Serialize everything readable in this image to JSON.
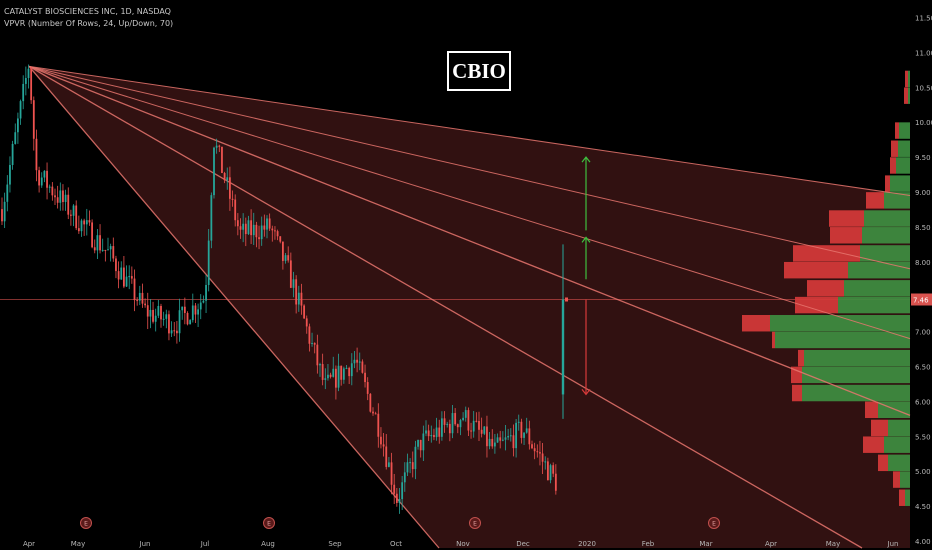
{
  "header": {
    "symbol_line": "CATALYST BIOSCIENCES INC, 1D, NASDAQ",
    "indicator_line": "VPVR (Number Of Rows, 24, Up/Down, 70)"
  },
  "annotation": {
    "ticker_label": "CBIO"
  },
  "colors": {
    "background": "#000000",
    "up": "#26a69a",
    "down": "#ef5350",
    "fan_line": "#e8766f",
    "fan_fill": "#3a1414",
    "vp_up": "#3e8e41",
    "vp_down": "#d63a3a",
    "arrow_up": "#3fbf3f",
    "arrow_down": "#d63a3a",
    "price_line": "#d9534f"
  },
  "chart_data": {
    "type": "candlestick",
    "title": "CATALYST BIOSCIENCES INC, 1D, NASDAQ",
    "xlabel": "",
    "ylabel": "",
    "x_ticks": [
      "Apr",
      "May",
      "Jun",
      "Jul",
      "Aug",
      "Sep",
      "Oct",
      "Nov",
      "Dec",
      "2020",
      "Feb",
      "Mar",
      "Apr",
      "May",
      "Jun"
    ],
    "y_ticks": [
      4.0,
      4.5,
      5.0,
      5.5,
      6.0,
      6.5,
      7.0,
      7.5,
      8.0,
      8.5,
      9.0,
      9.5,
      10.0,
      10.5,
      11.0,
      11.5
    ],
    "ylim": [
      3.9,
      11.55
    ],
    "last_price": "7.46",
    "earnings_markers": [
      {
        "month": "May",
        "label": "E"
      },
      {
        "month": "Aug",
        "label": "E"
      },
      {
        "month": "Nov",
        "label": "E"
      },
      {
        "month": "Mar",
        "label": "E"
      }
    ],
    "price_anchors": [
      [
        "Mar",
        8.6
      ],
      [
        "Apr",
        10.85
      ],
      [
        "Apr",
        9.3
      ],
      [
        "May",
        8.6
      ],
      [
        "May",
        8.1
      ],
      [
        "Jun",
        7.3
      ],
      [
        "Jun",
        7.1
      ],
      [
        "Jul",
        7.5
      ],
      [
        "Jul",
        9.75
      ],
      [
        "Jul",
        8.4
      ],
      [
        "Aug",
        8.5
      ],
      [
        "Aug",
        7.8
      ],
      [
        "Sep",
        6.2
      ],
      [
        "Sep",
        6.6
      ],
      [
        "Oct",
        5.6
      ],
      [
        "Oct",
        4.6
      ],
      [
        "Oct",
        5.4
      ],
      [
        "Nov",
        5.8
      ],
      [
        "Nov",
        5.3
      ],
      [
        "Dec",
        5.6
      ],
      [
        "Dec",
        4.75
      ]
    ],
    "final_candle": {
      "open": 6.1,
      "high": 8.25,
      "low": 5.75,
      "close": 7.46
    },
    "volume_profile": [
      {
        "price": 4.62,
        "up": 5,
        "down": 6
      },
      {
        "price": 4.88,
        "up": 10,
        "down": 7
      },
      {
        "price": 5.12,
        "up": 22,
        "down": 10
      },
      {
        "price": 5.38,
        "up": 26,
        "down": 21
      },
      {
        "price": 5.62,
        "up": 22,
        "down": 17
      },
      {
        "price": 5.88,
        "up": 32,
        "down": 13
      },
      {
        "price": 6.12,
        "up": 108,
        "down": 10
      },
      {
        "price": 6.38,
        "up": 108,
        "down": 11
      },
      {
        "price": 6.62,
        "up": 106,
        "down": 6
      },
      {
        "price": 6.88,
        "up": 135,
        "down": 3
      },
      {
        "price": 7.12,
        "up": 140,
        "down": 28
      },
      {
        "price": 7.38,
        "up": 72,
        "down": 43
      },
      {
        "price": 7.62,
        "up": 66,
        "down": 37
      },
      {
        "price": 7.88,
        "up": 62,
        "down": 64
      },
      {
        "price": 8.12,
        "up": 50,
        "down": 67
      },
      {
        "price": 8.38,
        "up": 48,
        "down": 32
      },
      {
        "price": 8.62,
        "up": 46,
        "down": 35
      },
      {
        "price": 8.88,
        "up": 26,
        "down": 18
      },
      {
        "price": 9.12,
        "up": 20,
        "down": 5
      },
      {
        "price": 9.38,
        "up": 14,
        "down": 6
      },
      {
        "price": 9.62,
        "up": 12,
        "down": 7
      },
      {
        "price": 9.88,
        "up": 11,
        "down": 4
      },
      {
        "price": 10.38,
        "up": 2,
        "down": 4
      },
      {
        "price": 10.62,
        "up": 2,
        "down": 3
      }
    ],
    "fan_origin": {
      "month": "Apr",
      "price": 10.8
    },
    "fan_lines": [
      {
        "to_price": 8.95,
        "at": "right-edge"
      },
      {
        "to_price": 7.9,
        "at": "right-edge"
      },
      {
        "to_price": 6.9,
        "at": "right-edge"
      },
      {
        "to_price": 5.8,
        "at": "right-edge"
      },
      {
        "to_price": 3.9,
        "at": "Feb"
      },
      {
        "to_price": 3.9,
        "at": "Oct"
      }
    ],
    "arrows": [
      {
        "type": "up",
        "from": 8.45,
        "to": 9.5
      },
      {
        "type": "up",
        "from": 7.75,
        "to": 8.35
      },
      {
        "type": "down",
        "from": 7.46,
        "to": 6.1
      }
    ]
  }
}
